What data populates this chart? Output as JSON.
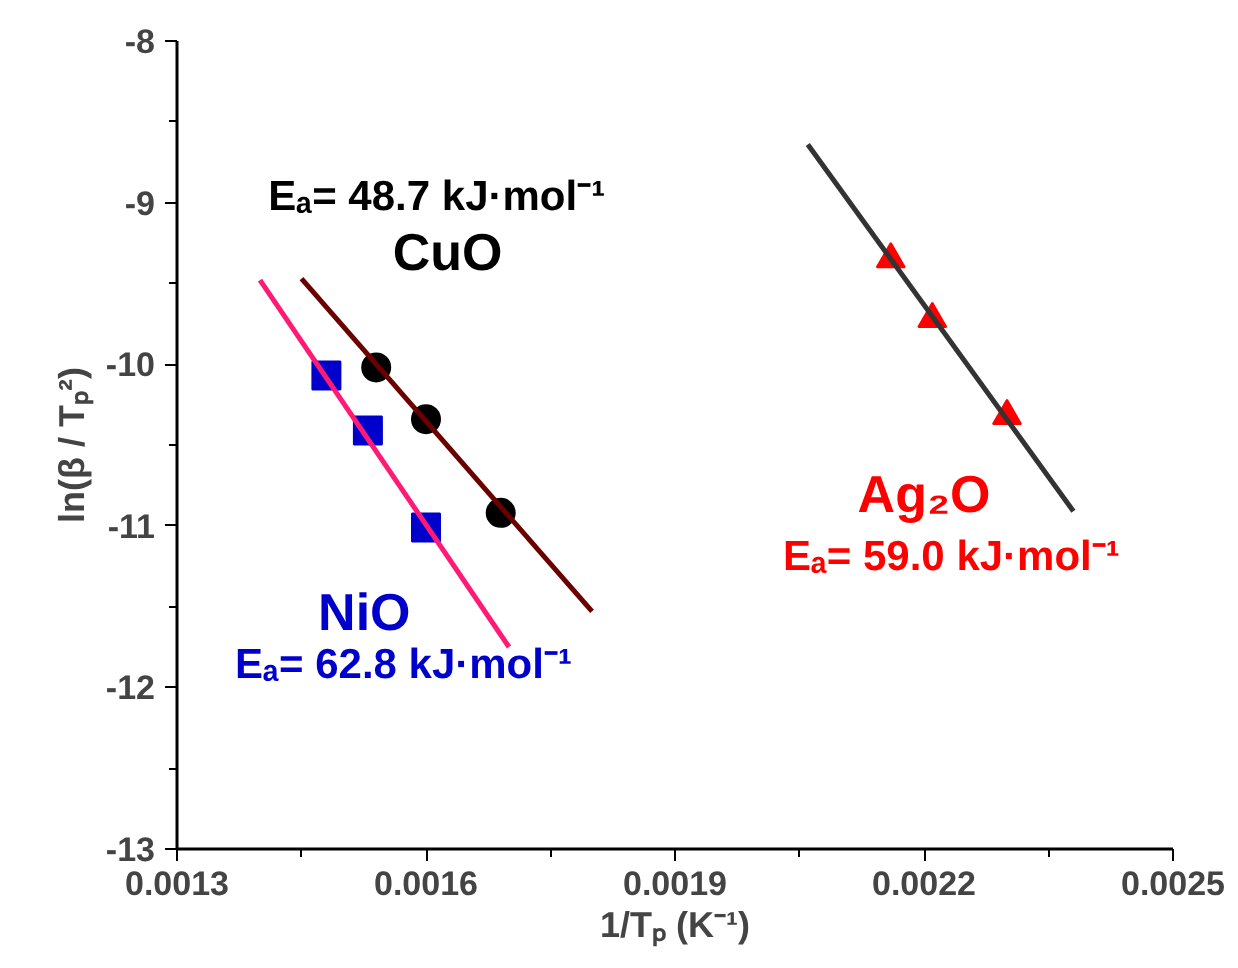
{
  "chart_data": {
    "type": "scatter",
    "xlabel": "1/Tₚ (K⁻¹)",
    "ylabel": "ln(β / Tₚ²)",
    "xlim": [
      0.0013,
      0.0025
    ],
    "xticks": [
      {
        "value": 0.0013,
        "label": "0.0013"
      },
      {
        "value": 0.0016,
        "label": "0.0016"
      },
      {
        "value": 0.0019,
        "label": "0.0019"
      },
      {
        "value": 0.0022,
        "label": "0.0022"
      },
      {
        "value": 0.0025,
        "label": "0.0025"
      }
    ],
    "ylim": [
      -13,
      -8
    ],
    "yticks": [
      -13,
      -12,
      -11,
      -10,
      -9,
      -8
    ],
    "grid": false,
    "series": [
      {
        "name": "CuO",
        "marker": "circle",
        "color": "#000000",
        "x": [
          0.00154,
          0.0016,
          0.00169
        ],
        "values": [
          -10.02,
          -10.34,
          -10.92
        ]
      },
      {
        "type": "line",
        "line_style": "solid",
        "color": "#6b0000",
        "x": [
          0.00145,
          0.0018
        ],
        "values": [
          -9.47,
          -11.53
        ]
      },
      {
        "name": "NiO",
        "marker": "square",
        "color": "#0000cc",
        "x": [
          0.00148,
          0.00153,
          0.0016
        ],
        "values": [
          -10.07,
          -10.41,
          -11.01
        ]
      },
      {
        "type": "line",
        "line_style": "solid",
        "color": "#ff1a75",
        "x": [
          0.0014,
          0.0017
        ],
        "values": [
          -9.48,
          -11.75
        ]
      },
      {
        "name": "Ag₂O",
        "marker": "triangle",
        "color": "#ff0000",
        "x": [
          0.00216,
          0.00221,
          0.0023
        ],
        "values": [
          -9.35,
          -9.72,
          -10.32
        ]
      },
      {
        "type": "line",
        "line_style": "solid",
        "color": "#333333",
        "x": [
          0.00206,
          0.00238
        ],
        "values": [
          -8.64,
          -10.91
        ]
      }
    ],
    "annotations": [
      "Eₐ= 48.7 kJ·mol⁻¹",
      "Eₐ= 62.8 kJ·mol⁻¹",
      "Eₐ= 59.0 kJ·mol⁻¹"
    ]
  }
}
